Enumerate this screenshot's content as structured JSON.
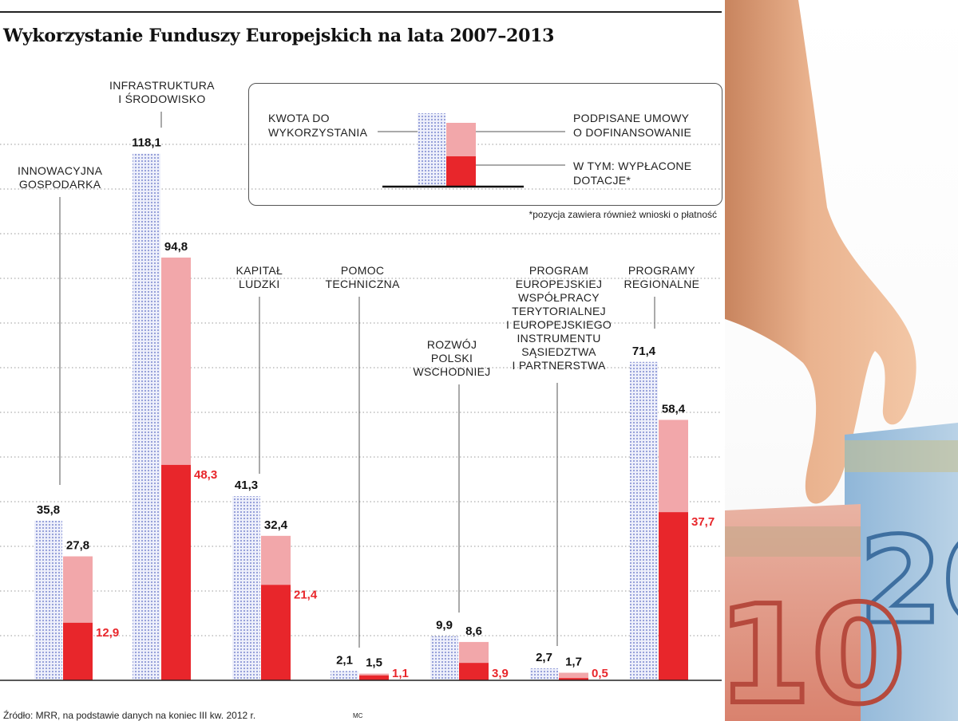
{
  "title": "Wykorzystanie Funduszy Europejskich na lata 2007–2013",
  "legend": {
    "allocated": "KWOTA DO\nWYKORZYSTANIA",
    "contracted": "PODPISANE UMOWY\nO DOFINANSOWANIE",
    "paid": "W TYM: WYPŁACONE\nDOTACJE*"
  },
  "footnote": "*pozycja zawiera również wnioski o płatność",
  "source": "Źródło: MRR, na podstawie danych na koniec III kw. 2012 r.",
  "credit": "MC",
  "colors": {
    "allocated": "#c9cfee",
    "contracted": "#f2a7aa",
    "paid": "#e8262b",
    "paid_label": "#e8262b"
  },
  "chart_data": {
    "type": "bar",
    "categories": [
      "INNOWACYJNA\nGOSPODARKA",
      "INFRASTRUKTURA\nI ŚRODOWISKO",
      "KAPITAŁ\nLUDZKI",
      "POMOC\nTECHNICZNA",
      "ROZWÓJ\nPOLSKI\nWSCHODNIEJ",
      "PROGRAM\nEUROPEJSKIEJ\nWSPÓŁPRACY\nTERYTORIALNEJ\nI EUROPEJSKIEGO\nINSTRUMENTU\nSĄSIEDZTWA\nI PARTNERSTWA",
      "PROGRAMY\nREGIONALNE"
    ],
    "series": [
      {
        "name": "KWOTA DO WYKORZYSTANIA",
        "values": [
          35.8,
          118.1,
          41.3,
          2.1,
          9.9,
          2.7,
          71.4
        ]
      },
      {
        "name": "PODPISANE UMOWY O DOFINANSOWANIE",
        "values": [
          27.8,
          94.8,
          32.4,
          1.5,
          8.6,
          1.7,
          58.4
        ]
      },
      {
        "name": "W TYM: WYPŁACONE DOTACJE*",
        "values": [
          12.9,
          48.3,
          21.4,
          1.1,
          3.9,
          0.5,
          37.7
        ]
      }
    ],
    "value_labels": {
      "allocated": [
        "35,8",
        "118,1",
        "41,3",
        "2,1",
        "9,9",
        "2,7",
        "71,4"
      ],
      "contracted": [
        "27,8",
        "94,8",
        "32,4",
        "1,5",
        "8,6",
        "1,7",
        "58,4"
      ],
      "paid": [
        "12,9",
        "48,3",
        "21,4",
        "1,1",
        "3,9",
        "0,5",
        "37,7"
      ]
    },
    "ylim": [
      0,
      120
    ],
    "grid": true
  }
}
